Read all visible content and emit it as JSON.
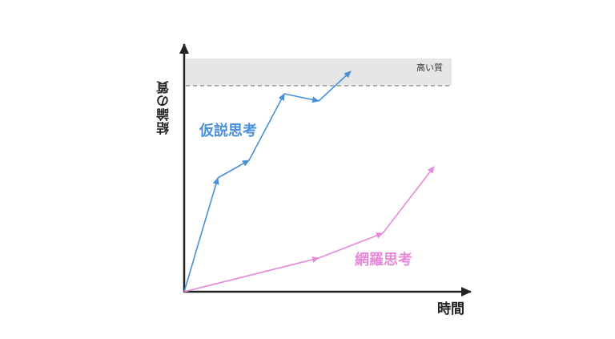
{
  "diagram": {
    "y_axis_label": "結論の質",
    "x_axis_label": "時間",
    "band_label": "高い質",
    "series": [
      {
        "name": "仮説思考",
        "color": "#4a90d9"
      },
      {
        "name": "網羅思考",
        "color": "#e58ad8"
      }
    ],
    "band_color": "#e6e6e6",
    "axis_color": "#222222",
    "dash_color": "#888888"
  }
}
